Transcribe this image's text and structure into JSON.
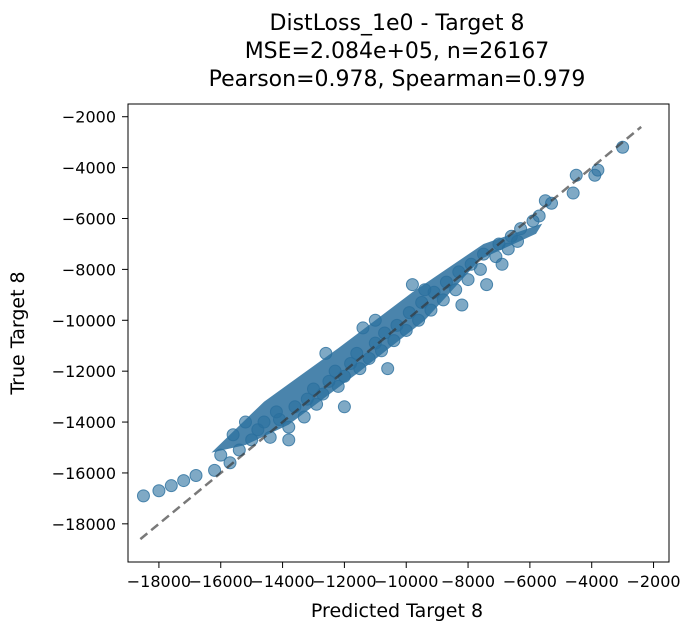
{
  "chart_data": {
    "type": "scatter",
    "title_lines": [
      "DistLoss_1e0 - Target 8",
      "MSE=2.084e+05, n=26167",
      "Pearson=0.978, Spearman=0.979"
    ],
    "xlabel": "Predicted Target 8",
    "ylabel": "True Target 8",
    "xlim": [
      -19000,
      -1500
    ],
    "ylim": [
      -19500,
      -1500
    ],
    "xticks": [
      -18000,
      -16000,
      -14000,
      -12000,
      -10000,
      -8000,
      -6000,
      -4000,
      -2000
    ],
    "yticks": [
      -18000,
      -16000,
      -14000,
      -12000,
      -10000,
      -8000,
      -6000,
      -4000,
      -2000
    ],
    "xtick_labels": [
      "−18000",
      "−16000",
      "−14000",
      "−12000",
      "−10000",
      "−8000",
      "−6000",
      "−4000",
      "−2000"
    ],
    "ytick_labels": [
      "−18000",
      "−16000",
      "−14000",
      "−12000",
      "−10000",
      "−8000",
      "−6000",
      "−4000",
      "−2000"
    ],
    "grid": false,
    "point_color": "#2a6f9e",
    "reference_line": {
      "from": [
        -18600,
        -18600
      ],
      "to": [
        -2400,
        -2400
      ],
      "style": "dashed",
      "color": "#333333"
    },
    "points": [
      [
        -18500,
        -16900
      ],
      [
        -18000,
        -16700
      ],
      [
        -17600,
        -16500
      ],
      [
        -17200,
        -16300
      ],
      [
        -16800,
        -16100
      ],
      [
        -16200,
        -15900
      ],
      [
        -16000,
        -15300
      ],
      [
        -15700,
        -15600
      ],
      [
        -15400,
        -15100
      ],
      [
        -15600,
        -14500
      ],
      [
        -15000,
        -14700
      ],
      [
        -14800,
        -14300
      ],
      [
        -14400,
        -14600
      ],
      [
        -14600,
        -14000
      ],
      [
        -14100,
        -13900
      ],
      [
        -13800,
        -14200
      ],
      [
        -14200,
        -13600
      ],
      [
        -13600,
        -13400
      ],
      [
        -13300,
        -13800
      ],
      [
        -13200,
        -13100
      ],
      [
        -12900,
        -13300
      ],
      [
        -13000,
        -12700
      ],
      [
        -12700,
        -12900
      ],
      [
        -12500,
        -12400
      ],
      [
        -12200,
        -12600
      ],
      [
        -12300,
        -12000
      ],
      [
        -12000,
        -12200
      ],
      [
        -11800,
        -11700
      ],
      [
        -11500,
        -11900
      ],
      [
        -11600,
        -11300
      ],
      [
        -11200,
        -11500
      ],
      [
        -11000,
        -10900
      ],
      [
        -10800,
        -11200
      ],
      [
        -10700,
        -10500
      ],
      [
        -10400,
        -10800
      ],
      [
        -10300,
        -10200
      ],
      [
        -10000,
        -10400
      ],
      [
        -9900,
        -9700
      ],
      [
        -9600,
        -10000
      ],
      [
        -9500,
        -9300
      ],
      [
        -9200,
        -9600
      ],
      [
        -9100,
        -8900
      ],
      [
        -8800,
        -9200
      ],
      [
        -8700,
        -8500
      ],
      [
        -8400,
        -8800
      ],
      [
        -8300,
        -8100
      ],
      [
        -8000,
        -8400
      ],
      [
        -7900,
        -7800
      ],
      [
        -7600,
        -8000
      ],
      [
        -7500,
        -7400
      ],
      [
        -7100,
        -7500
      ],
      [
        -7000,
        -7000
      ],
      [
        -6700,
        -7200
      ],
      [
        -6600,
        -6700
      ],
      [
        -6300,
        -6400
      ],
      [
        -6400,
        -6900
      ],
      [
        -5900,
        -6100
      ],
      [
        -5700,
        -5900
      ],
      [
        -5500,
        -5300
      ],
      [
        -5300,
        -5400
      ],
      [
        -4600,
        -5000
      ],
      [
        -4500,
        -4300
      ],
      [
        -3900,
        -4300
      ],
      [
        -3800,
        -4100
      ],
      [
        -3000,
        -3200
      ],
      [
        -12600,
        -11300
      ],
      [
        -11000,
        -10000
      ],
      [
        -9400,
        -8800
      ],
      [
        -13800,
        -14700
      ],
      [
        -8200,
        -9400
      ],
      [
        -7400,
        -8600
      ],
      [
        -10600,
        -11900
      ],
      [
        -12000,
        -13400
      ],
      [
        -9800,
        -8600
      ],
      [
        -11400,
        -10300
      ],
      [
        -15200,
        -14000
      ],
      [
        -6900,
        -7800
      ]
    ]
  }
}
